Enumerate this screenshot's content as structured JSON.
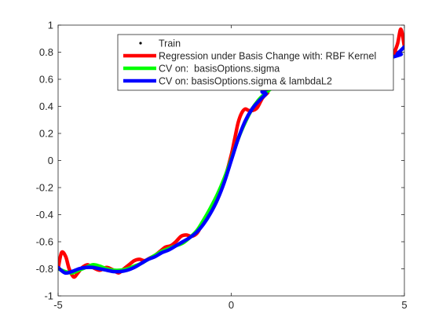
{
  "chart_data": {
    "type": "line",
    "title": "",
    "xlabel": "",
    "ylabel": "",
    "xlim": [
      -5,
      5
    ],
    "ylim": [
      -1,
      1
    ],
    "xticks": [
      -5,
      0,
      5
    ],
    "yticks": [
      -1,
      -0.8,
      -0.6,
      -0.4,
      -0.2,
      0,
      0.2,
      0.4,
      0.6,
      0.8,
      1
    ],
    "xtick_labels": [
      "-5",
      "0",
      "5"
    ],
    "ytick_labels": [
      "-1",
      "-0.8",
      "-0.6",
      "-0.4",
      "-0.2",
      "0",
      "0.2",
      "0.4",
      "0.6",
      "0.8",
      "1"
    ],
    "grid": false,
    "legend_position": "top-right",
    "series": [
      {
        "name": "Train",
        "kind": "marker",
        "color": "#000000",
        "x": [],
        "y": []
      },
      {
        "name": "Regression under Basis Change with: RBF Kernel",
        "kind": "line",
        "color": "#ff0000",
        "x": [
          -5.0,
          -4.9,
          -4.78,
          -4.68,
          -4.55,
          -4.43,
          -4.3,
          -4.15,
          -4.0,
          -3.8,
          -3.6,
          -3.4,
          -3.25,
          -3.1,
          -2.95,
          -2.8,
          -2.65,
          -2.5,
          -2.35,
          -2.2,
          -2.05,
          -1.9,
          -1.75,
          -1.6,
          -1.45,
          -1.3,
          -1.15,
          -1.0,
          -0.9,
          -0.75,
          -0.6,
          -0.45,
          -0.3,
          -0.15,
          0.0,
          0.1,
          0.2,
          0.3,
          0.4,
          0.5,
          0.62,
          0.75,
          0.9,
          1.05,
          1.2,
          4.5,
          4.68,
          4.8,
          4.9,
          5.0
        ],
        "y": [
          -0.8,
          -0.68,
          -0.71,
          -0.8,
          -0.86,
          -0.83,
          -0.79,
          -0.77,
          -0.79,
          -0.81,
          -0.79,
          -0.81,
          -0.83,
          -0.8,
          -0.77,
          -0.74,
          -0.73,
          -0.74,
          -0.72,
          -0.7,
          -0.67,
          -0.64,
          -0.63,
          -0.6,
          -0.56,
          -0.55,
          -0.56,
          -0.54,
          -0.5,
          -0.43,
          -0.36,
          -0.28,
          -0.2,
          -0.1,
          0.04,
          0.16,
          0.28,
          0.35,
          0.38,
          0.37,
          0.37,
          0.39,
          0.46,
          0.5,
          0.54,
          0.78,
          0.79,
          0.86,
          0.97,
          0.84
        ]
      },
      {
        "name": "CV on:  basisOptions.sigma",
        "kind": "line",
        "color": "#00ff00",
        "x": [
          -5.0,
          -4.8,
          -4.6,
          -4.4,
          -4.2,
          -4.0,
          -3.8,
          -3.6,
          -3.4,
          -3.2,
          -3.0,
          -2.8,
          -2.6,
          -2.4,
          -2.2,
          -2.0,
          -1.8,
          -1.6,
          -1.4,
          -1.2,
          -1.0,
          -0.8,
          -0.6,
          -0.4,
          -0.2,
          0.0,
          0.2,
          0.4,
          0.6,
          0.8,
          1.0,
          1.2
        ],
        "y": [
          -0.8,
          -0.82,
          -0.83,
          -0.81,
          -0.79,
          -0.77,
          -0.78,
          -0.8,
          -0.81,
          -0.81,
          -0.8,
          -0.78,
          -0.76,
          -0.73,
          -0.7,
          -0.67,
          -0.65,
          -0.63,
          -0.61,
          -0.57,
          -0.52,
          -0.44,
          -0.35,
          -0.25,
          -0.13,
          0.01,
          0.16,
          0.28,
          0.38,
          0.45,
          0.5,
          0.54
        ]
      },
      {
        "name": "CV on: basisOptions.sigma & lambdaL2",
        "kind": "line",
        "color": "#0000ff",
        "x": [
          -5.0,
          -4.8,
          -4.6,
          -4.4,
          -4.2,
          -4.0,
          -3.8,
          -3.6,
          -3.4,
          -3.2,
          -3.0,
          -2.8,
          -2.6,
          -2.4,
          -2.2,
          -2.0,
          -1.8,
          -1.6,
          -1.4,
          -1.2,
          -1.0,
          -0.8,
          -0.6,
          -0.4,
          -0.2,
          0.0,
          0.2,
          0.4,
          0.6,
          0.8,
          1.0,
          1.2,
          4.6,
          4.8,
          5.0
        ],
        "y": [
          -0.79,
          -0.83,
          -0.82,
          -0.8,
          -0.79,
          -0.79,
          -0.8,
          -0.81,
          -0.82,
          -0.82,
          -0.81,
          -0.79,
          -0.76,
          -0.73,
          -0.71,
          -0.68,
          -0.66,
          -0.63,
          -0.6,
          -0.57,
          -0.53,
          -0.47,
          -0.39,
          -0.29,
          -0.16,
          0.0,
          0.16,
          0.29,
          0.38,
          0.44,
          0.49,
          0.54,
          0.76,
          0.79,
          0.84
        ]
      }
    ]
  }
}
